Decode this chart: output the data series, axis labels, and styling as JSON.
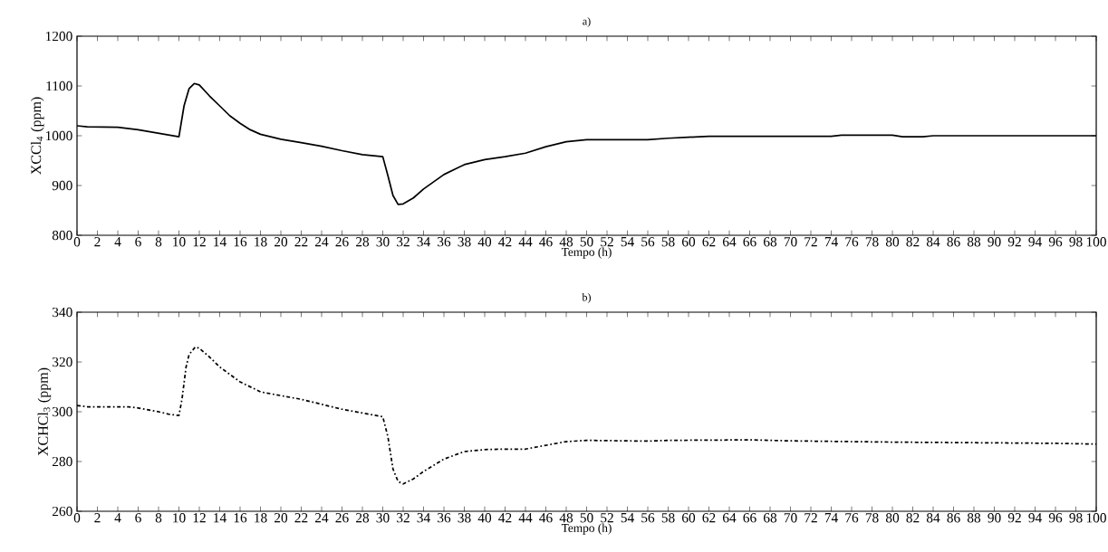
{
  "chart_data": [
    {
      "type": "line",
      "title": "a)",
      "xlabel": "Tempo (h)",
      "ylabel": "XCCl$_{4}$ (ppm)",
      "xlim": [
        0,
        100
      ],
      "ylim": [
        800,
        1200
      ],
      "xticks": [
        0,
        2,
        4,
        6,
        8,
        10,
        12,
        14,
        16,
        18,
        20,
        22,
        24,
        26,
        28,
        30,
        32,
        34,
        36,
        38,
        40,
        42,
        44,
        46,
        48,
        50,
        52,
        54,
        56,
        58,
        60,
        62,
        64,
        66,
        68,
        70,
        72,
        74,
        76,
        78,
        80,
        82,
        84,
        86,
        88,
        90,
        92,
        94,
        96,
        98,
        100
      ],
      "yticks": [
        800,
        900,
        1000,
        1100,
        1200
      ],
      "line_style": "solid",
      "series": [
        {
          "color": "#000000",
          "x": [
            0,
            1,
            4,
            6,
            8,
            10,
            10.5,
            11,
            11.5,
            12,
            13,
            14,
            15,
            16,
            17,
            18,
            20,
            22,
            24,
            26,
            28,
            30,
            30.5,
            31,
            31.5,
            32,
            33,
            34,
            36,
            38,
            40,
            42,
            44,
            46,
            48,
            50,
            56,
            58,
            60,
            62,
            74,
            75,
            80,
            81,
            83,
            84,
            100
          ],
          "values": [
            1020,
            1018,
            1017,
            1012,
            1005,
            998,
            1060,
            1095,
            1105,
            1102,
            1080,
            1060,
            1040,
            1025,
            1012,
            1003,
            993,
            986,
            979,
            970,
            962,
            958,
            920,
            880,
            862,
            863,
            875,
            893,
            922,
            942,
            952,
            958,
            965,
            978,
            988,
            992,
            992,
            995,
            997,
            999,
            999,
            1001,
            1001,
            998,
            998,
            1000,
            1000
          ]
        }
      ]
    },
    {
      "type": "line",
      "title": "b)",
      "xlabel": "Tempo (h)",
      "ylabel": "XCHCl$_{3}$ (ppm)",
      "xlim": [
        0,
        100
      ],
      "ylim": [
        260,
        340
      ],
      "xticks": [
        0,
        2,
        4,
        6,
        8,
        10,
        12,
        14,
        16,
        18,
        20,
        22,
        24,
        26,
        28,
        30,
        32,
        34,
        36,
        38,
        40,
        42,
        44,
        46,
        48,
        50,
        52,
        54,
        56,
        58,
        60,
        62,
        64,
        66,
        68,
        70,
        72,
        74,
        76,
        78,
        80,
        82,
        84,
        86,
        88,
        90,
        92,
        94,
        96,
        98,
        100
      ],
      "yticks": [
        260,
        280,
        300,
        320,
        340
      ],
      "line_style": "dashdot",
      "series": [
        {
          "color": "#000000",
          "x": [
            0,
            1,
            5,
            6,
            8,
            9,
            10,
            10.3,
            10.7,
            11,
            11.6,
            12,
            13,
            14,
            15,
            16,
            18,
            20,
            22,
            24,
            26,
            28,
            30,
            30.5,
            31,
            31.5,
            32,
            33,
            34,
            36,
            38,
            40,
            42,
            44,
            46,
            48,
            50,
            56,
            58,
            66,
            70,
            80,
            90,
            96,
            100
          ],
          "values": [
            302.5,
            302,
            302,
            301.5,
            300,
            299,
            298.5,
            305,
            318,
            323,
            326,
            325.5,
            322,
            318,
            315,
            312,
            308,
            306.5,
            305,
            303,
            301,
            299.5,
            298,
            290,
            277,
            272,
            271,
            273,
            276,
            281,
            284,
            284.8,
            285,
            285,
            286.5,
            288,
            288.5,
            288.2,
            288.5,
            288.7,
            288.3,
            287.8,
            287.5,
            287.3,
            287
          ]
        }
      ]
    }
  ]
}
